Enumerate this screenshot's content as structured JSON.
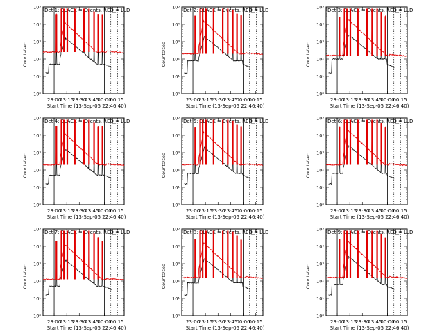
{
  "figure": {
    "xlabel": "Start Time (13-Sep-05 22:46:40)",
    "ylabel": "Counts/sec",
    "event_color": "#000000",
    "lld_color": "#e00000",
    "x_ticks": [
      "23:00",
      "23:15",
      "23:30",
      "23:45",
      "00:00",
      "00:15"
    ]
  },
  "chart_data": [
    {
      "type": "line",
      "title": "Det 1: BLACK = Events, RED = LLD",
      "scale": "log",
      "ylim_exp": [
        0,
        5
      ],
      "y_ticks": [
        "10⁰",
        "10¹",
        "10²",
        "10³",
        "10⁴",
        "10⁵"
      ],
      "x_minutes": [
        13.3,
        73.3
      ],
      "lld_base": 2.4,
      "event_base": 1.7,
      "series": [
        {
          "values_desc": "LLD"
        },
        {
          "values_desc": "Events"
        }
      ]
    },
    {
      "type": "line",
      "title": "Det 2: BLACK = Events, RED = LLD",
      "scale": "log",
      "ylim_exp": [
        0,
        5
      ],
      "y_ticks": [
        "10⁰",
        "10¹",
        "10²",
        "10³",
        "10⁴",
        "10⁵"
      ],
      "x_minutes": [
        13.3,
        73.3
      ],
      "lld_base": 2.3,
      "event_base": 1.9,
      "series": [
        {
          "values_desc": "LLD"
        },
        {
          "values_desc": "Events"
        }
      ]
    },
    {
      "type": "line",
      "title": "Det 3: BLACK = Events, RED = LLD",
      "scale": "log",
      "ylim_exp": [
        0,
        5
      ],
      "y_ticks": [
        "10⁰",
        "10¹",
        "10²",
        "10³",
        "10⁴",
        "10⁵"
      ],
      "x_minutes": [
        13.3,
        73.3
      ],
      "lld_base": 2.2,
      "event_base": 2.0,
      "series": [
        {
          "values_desc": "LLD"
        },
        {
          "values_desc": "Events"
        }
      ]
    },
    {
      "type": "line",
      "title": "Det 4: BLACK = Events, RED = LLD",
      "scale": "log",
      "ylim_exp": [
        0,
        5
      ],
      "y_ticks": [
        "10⁰",
        "10¹",
        "10²",
        "10³",
        "10⁴",
        "10⁵"
      ],
      "x_minutes": [
        13.3,
        73.3
      ],
      "lld_base": 2.3,
      "event_base": 1.7,
      "series": [
        {
          "values_desc": "LLD"
        },
        {
          "values_desc": "Events"
        }
      ]
    },
    {
      "type": "line",
      "title": "Det 5: BLACK = Events, RED = LLD",
      "scale": "log",
      "ylim_exp": [
        0,
        5
      ],
      "y_ticks": [
        "10⁰",
        "10¹",
        "10²",
        "10³",
        "10⁴",
        "10⁵"
      ],
      "x_minutes": [
        13.3,
        73.3
      ],
      "lld_base": 2.3,
      "event_base": 1.8,
      "series": [
        {
          "values_desc": "LLD"
        },
        {
          "values_desc": "Events"
        }
      ]
    },
    {
      "type": "line",
      "title": "Det 6: BLACK = Events, RED = LLD",
      "scale": "log",
      "ylim_exp": [
        0,
        5
      ],
      "y_ticks": [
        "10⁰",
        "10¹",
        "10²",
        "10³",
        "10⁴",
        "10⁵"
      ],
      "x_minutes": [
        13.3,
        73.3
      ],
      "lld_base": 2.3,
      "event_base": 1.8,
      "series": [
        {
          "values_desc": "LLD"
        },
        {
          "values_desc": "Events"
        }
      ]
    },
    {
      "type": "line",
      "title": "Det 7: BLACK = Events, RED = LLD",
      "scale": "log",
      "ylim_exp": [
        0,
        5
      ],
      "y_ticks": [
        "10⁰",
        "10¹",
        "10²",
        "10³",
        "10⁴",
        "10⁵"
      ],
      "x_minutes": [
        13.3,
        73.3
      ],
      "lld_base": 2.1,
      "event_base": 1.7,
      "series": [
        {
          "values_desc": "LLD"
        },
        {
          "values_desc": "Events"
        }
      ]
    },
    {
      "type": "line",
      "title": "Det 8: BLACK = Events, RED = LLD",
      "scale": "log",
      "ylim_exp": [
        0,
        5
      ],
      "y_ticks": [
        "10⁰",
        "10¹",
        "10²",
        "10³",
        "10⁴",
        "10⁵"
      ],
      "x_minutes": [
        13.3,
        73.3
      ],
      "lld_base": 2.2,
      "event_base": 1.9,
      "series": [
        {
          "values_desc": "LLD"
        },
        {
          "values_desc": "Events"
        }
      ]
    },
    {
      "type": "line",
      "title": "Det 9: BLACK = Events, RED = LLD",
      "scale": "log",
      "ylim_exp": [
        0,
        5
      ],
      "y_ticks": [
        "10⁰",
        "10¹",
        "10²",
        "10³",
        "10⁴",
        "10⁵"
      ],
      "x_minutes": [
        13.3,
        73.3
      ],
      "lld_base": 2.2,
      "event_base": 1.8,
      "series": [
        {
          "values_desc": "LLD"
        },
        {
          "values_desc": "Events"
        }
      ]
    }
  ]
}
